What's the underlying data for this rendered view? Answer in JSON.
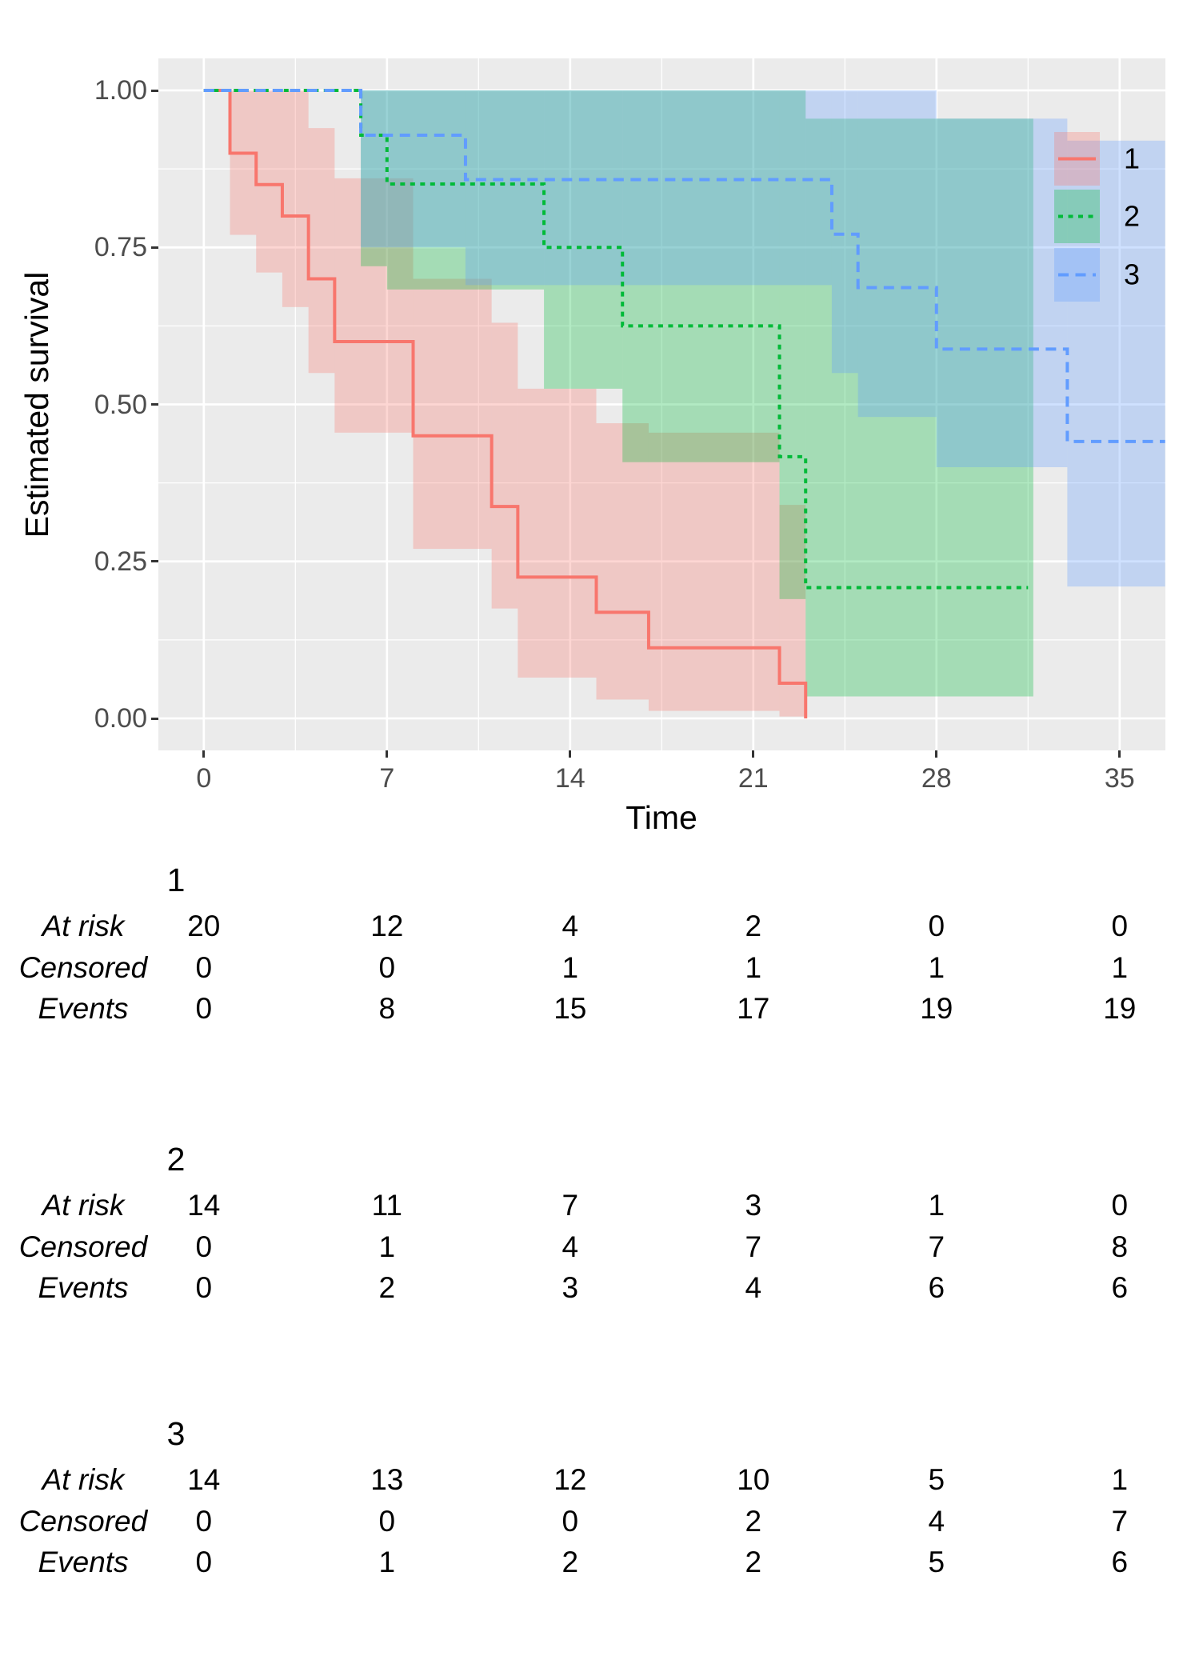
{
  "chart_data": {
    "type": "line",
    "subtype": "kaplan-meier-step-with-confidence-bands",
    "title": "",
    "xlabel": "Time",
    "ylabel": "Estimated survival",
    "x_ticks": [
      0,
      7,
      14,
      21,
      28,
      35
    ],
    "x_minor_ticks": [
      3.5,
      10.5,
      17.5,
      24.5,
      31.5
    ],
    "y_ticks": [
      1.0,
      0.75,
      0.5,
      0.25,
      0.0
    ],
    "y_tick_labels": [
      "1.00",
      "0.75",
      "0.50",
      "0.25",
      "0.00"
    ],
    "y_minor_ticks": [
      0.875,
      0.625,
      0.375,
      0.125
    ],
    "xlim": [
      -1.7375,
      36.7375
    ],
    "ylim": [
      -0.0513,
      1.0513
    ],
    "grid": "on",
    "legend_position": "inset-top-right",
    "panel_background": "#EBEBEB",
    "gridline_color": "#FFFFFF",
    "band_opacity": 0.3,
    "groups": [
      {
        "name": "1",
        "color": "#F8766D",
        "line_style": "solid",
        "steps": [
          [
            0,
            1.0
          ],
          [
            1,
            0.9
          ],
          [
            2,
            0.85
          ],
          [
            3,
            0.8
          ],
          [
            4,
            0.7
          ],
          [
            5,
            0.6
          ],
          [
            8,
            0.45
          ],
          [
            11,
            0.3375
          ],
          [
            12,
            0.225
          ],
          [
            15,
            0.169
          ],
          [
            17,
            0.1125
          ],
          [
            22,
            0.056
          ],
          [
            23,
            0.0
          ]
        ],
        "end_time": 23,
        "band": [
          [
            1,
            2,
            1.0,
            0.77
          ],
          [
            2,
            3,
            1.0,
            0.71
          ],
          [
            3,
            4,
            1.0,
            0.655
          ],
          [
            4,
            5,
            0.94,
            0.55
          ],
          [
            5,
            8,
            0.86,
            0.455
          ],
          [
            8,
            11,
            0.7,
            0.27
          ],
          [
            11,
            12,
            0.63,
            0.175
          ],
          [
            12,
            15,
            0.525,
            0.065
          ],
          [
            15,
            17,
            0.47,
            0.03
          ],
          [
            17,
            22,
            0.455,
            0.012
          ],
          [
            22,
            23,
            0.34,
            0.003
          ]
        ]
      },
      {
        "name": "2",
        "color": "#00BA38",
        "line_style": "dotted",
        "steps": [
          [
            0,
            1.0
          ],
          [
            6,
            0.9286
          ],
          [
            7,
            0.851
          ],
          [
            13,
            0.75
          ],
          [
            16,
            0.625
          ],
          [
            22,
            0.4167
          ],
          [
            23,
            0.2083
          ]
        ],
        "end_time": 31.5,
        "band": [
          [
            6,
            7,
            1.0,
            0.72
          ],
          [
            7,
            13,
            1.0,
            0.683
          ],
          [
            13,
            16,
            1.0,
            0.525
          ],
          [
            16,
            22,
            1.0,
            0.408
          ],
          [
            22,
            23,
            1.0,
            0.19
          ],
          [
            23,
            31.7,
            0.955,
            0.035
          ]
        ]
      },
      {
        "name": "3",
        "color": "#619CFF",
        "line_style": "dashed",
        "steps": [
          [
            0,
            1.0
          ],
          [
            6,
            0.9286
          ],
          [
            10,
            0.858
          ],
          [
            24,
            0.771
          ],
          [
            25,
            0.686
          ],
          [
            28,
            0.588
          ],
          [
            33,
            0.441
          ]
        ],
        "end_time": 36.7375,
        "band": [
          [
            6,
            10,
            1.0,
            0.75
          ],
          [
            10,
            24,
            1.0,
            0.69
          ],
          [
            24,
            25,
            1.0,
            0.55
          ],
          [
            25,
            28,
            1.0,
            0.48
          ],
          [
            28,
            33,
            0.955,
            0.4
          ],
          [
            33,
            36.7375,
            0.92,
            0.21
          ]
        ]
      }
    ]
  },
  "legend": {
    "items": [
      {
        "label": "1"
      },
      {
        "label": "2"
      },
      {
        "label": "3"
      }
    ]
  },
  "risk_tables": [
    {
      "header": "1",
      "rows": [
        {
          "label": "At risk",
          "values": [
            "20",
            "12",
            "4",
            "2",
            "0",
            "0"
          ]
        },
        {
          "label": "Censored",
          "values": [
            "0",
            "0",
            "1",
            "1",
            "1",
            "1"
          ]
        },
        {
          "label": "Events",
          "values": [
            "0",
            "8",
            "15",
            "17",
            "19",
            "19"
          ]
        }
      ]
    },
    {
      "header": "2",
      "rows": [
        {
          "label": "At risk",
          "values": [
            "14",
            "11",
            "7",
            "3",
            "1",
            "0"
          ]
        },
        {
          "label": "Censored",
          "values": [
            "0",
            "1",
            "4",
            "7",
            "7",
            "8"
          ]
        },
        {
          "label": "Events",
          "values": [
            "0",
            "2",
            "3",
            "4",
            "6",
            "6"
          ]
        }
      ]
    },
    {
      "header": "3",
      "rows": [
        {
          "label": "At risk",
          "values": [
            "14",
            "13",
            "12",
            "10",
            "5",
            "1"
          ]
        },
        {
          "label": "Censored",
          "values": [
            "0",
            "0",
            "0",
            "2",
            "4",
            "7"
          ]
        },
        {
          "label": "Events",
          "values": [
            "0",
            "1",
            "2",
            "2",
            "5",
            "6"
          ]
        }
      ]
    }
  ]
}
